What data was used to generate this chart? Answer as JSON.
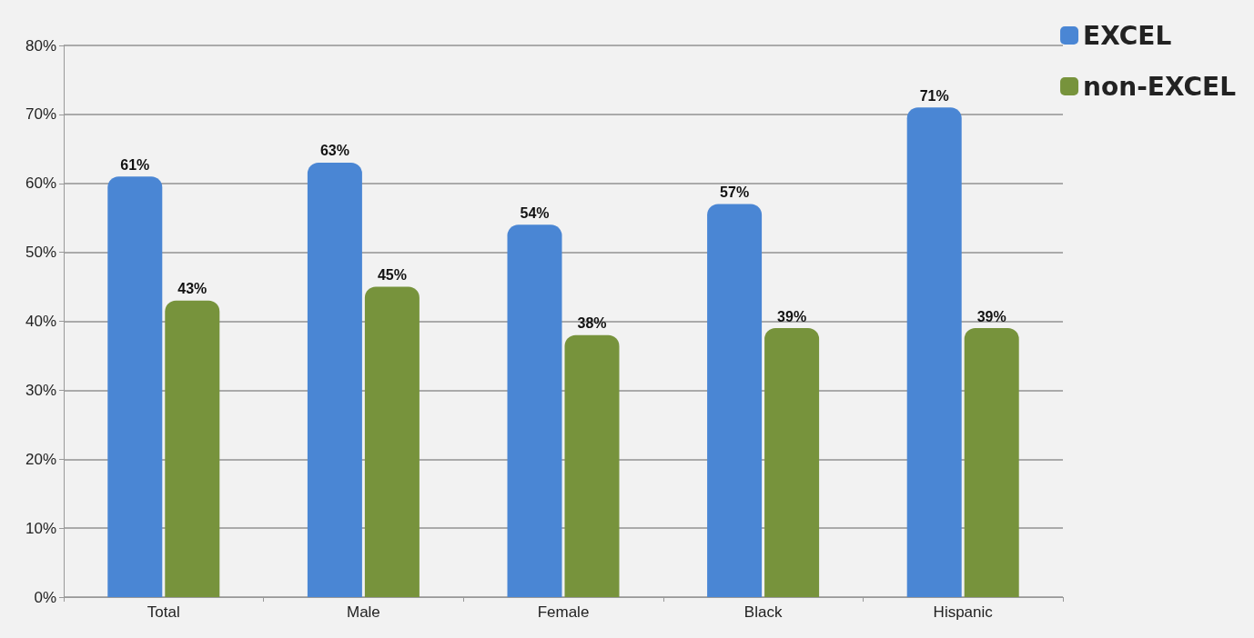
{
  "chart_data": {
    "type": "bar",
    "categories": [
      "Total",
      "Male",
      "Female",
      "Black",
      "Hispanic"
    ],
    "series": [
      {
        "name": "EXCEL",
        "color": "#4a86d4",
        "values": [
          61,
          63,
          54,
          57,
          71
        ],
        "value_labels": [
          "61%",
          "63%",
          "54%",
          "57%",
          "71%"
        ]
      },
      {
        "name": "non-EXCEL",
        "color": "#77933c",
        "values": [
          43,
          45,
          38,
          39,
          39
        ],
        "value_labels": [
          "43%",
          "45%",
          "38%",
          "39%",
          "39%"
        ]
      }
    ],
    "ylim": [
      0,
      80
    ],
    "yticks": [
      {
        "value": 0,
        "label": "0%"
      },
      {
        "value": 10,
        "label": "10%"
      },
      {
        "value": 20,
        "label": "20%"
      },
      {
        "value": 30,
        "label": "30%"
      },
      {
        "value": 40,
        "label": "40%"
      },
      {
        "value": 50,
        "label": "50%"
      },
      {
        "value": 60,
        "label": "60%"
      },
      {
        "value": 70,
        "label": "70%"
      },
      {
        "value": 80,
        "label": "80%"
      }
    ],
    "grid": "y",
    "legend": "top right"
  }
}
